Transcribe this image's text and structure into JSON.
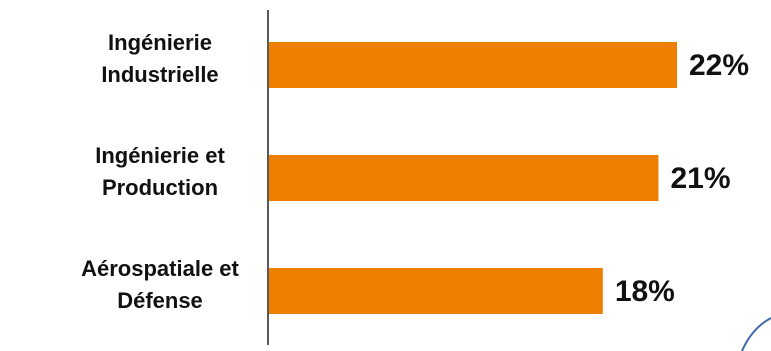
{
  "chart_data": {
    "type": "bar",
    "orientation": "horizontal",
    "categories": [
      [
        "Ingénierie",
        "Industrielle"
      ],
      [
        "Ingénierie et",
        "Production"
      ],
      [
        "Aérospatiale et",
        "Défense"
      ]
    ],
    "values": [
      22,
      21,
      18
    ],
    "value_labels": [
      "22%",
      "21%",
      "18%"
    ],
    "xlim": [
      0,
      27
    ],
    "bar_color": "#EE7F00",
    "axis_color": "#222222",
    "grid": false,
    "legend": "none"
  }
}
